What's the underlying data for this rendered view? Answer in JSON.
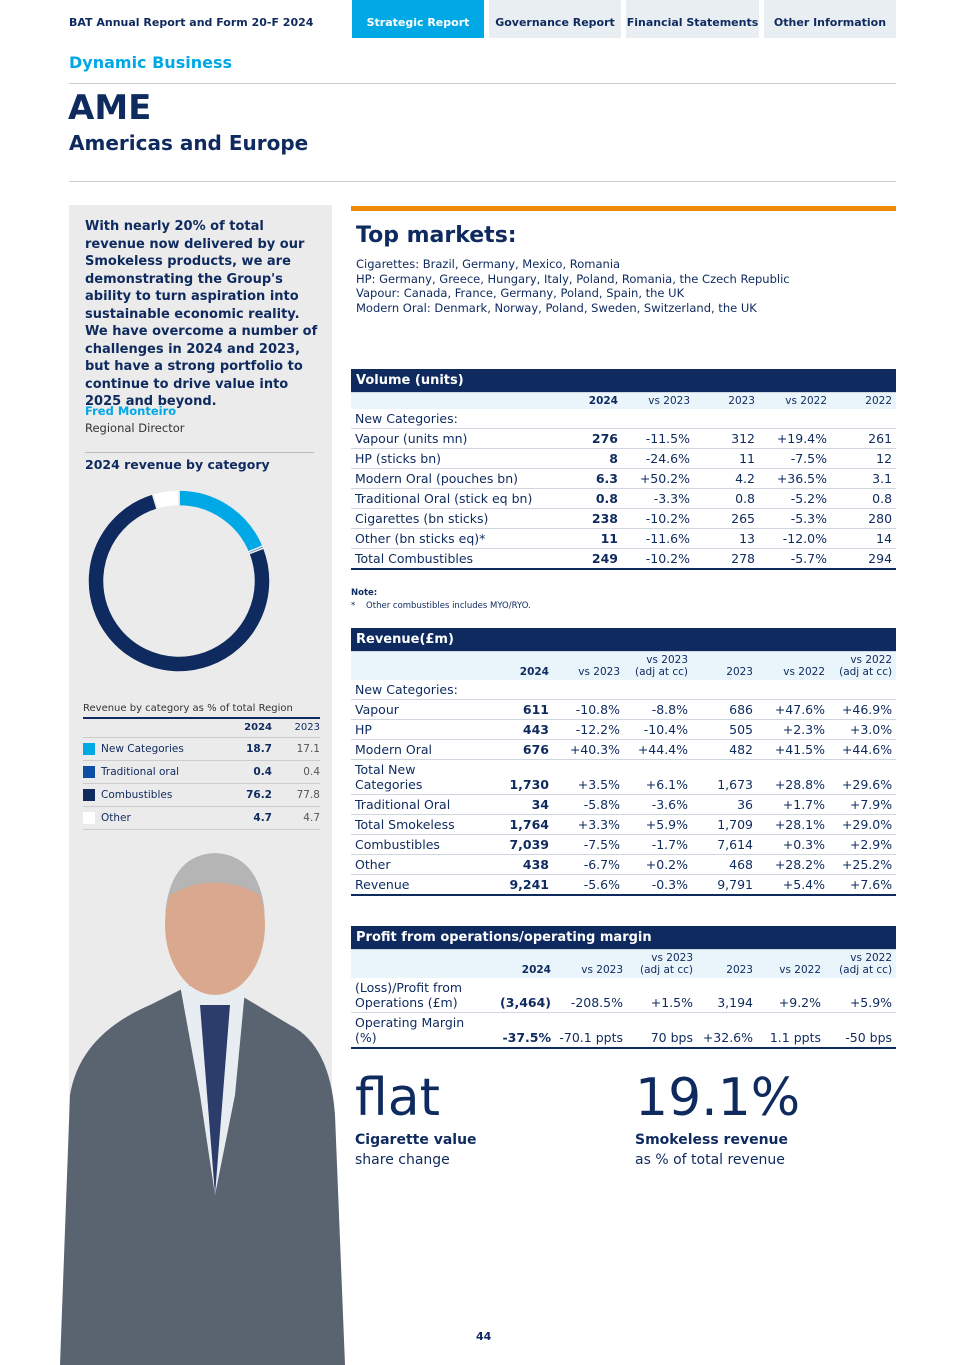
{
  "header": {
    "report": "BAT Annual Report and Form 20-F 2024",
    "tabs": [
      "Strategic Report",
      "Governance Report",
      "Financial Statements",
      "Other Information"
    ]
  },
  "section": "Dynamic Business",
  "title": "AME",
  "subtitle": "Americas and Europe",
  "quote": "With nearly 20% of total revenue now delivered by our Smokeless products, we are demonstrating the Group's ability to turn aspiration into sustainable economic reality. We have overcome a number of challenges in 2024 and 2023, but have a strong portfolio to continue to drive value into 2025 and beyond.",
  "person": {
    "name": "Fred Monteiro",
    "role": "Regional Director"
  },
  "revenue_by_category": {
    "type": "pie",
    "title": "2024 revenue by category",
    "caption": "Revenue by category as % of total Region",
    "columns": [
      "2024",
      "2023"
    ],
    "rows": [
      {
        "name": "New Categories",
        "color": "#00a9e6",
        "values": [
          18.7,
          17.1
        ]
      },
      {
        "name": "Traditional oral",
        "color": "#0a4fa3",
        "values": [
          0.4,
          0.4
        ]
      },
      {
        "name": "Combustibles",
        "color": "#0e2a5e",
        "values": [
          76.2,
          77.8
        ]
      },
      {
        "name": "Other",
        "color": "#ffffff",
        "values": [
          4.7,
          4.7
        ]
      }
    ]
  },
  "top_markets": {
    "title": "Top markets:",
    "lines": [
      "Cigarettes: Brazil, Germany, Mexico, Romania",
      "HP: Germany, Greece, Hungary, Italy, Poland, Romania, the Czech Republic",
      "Vapour: Canada, France, Germany, Poland, Spain, the UK",
      "Modern Oral: Denmark, Norway, Poland, Sweden, Switzerland, the UK"
    ]
  },
  "volume": {
    "title": "Volume (units)",
    "columns": [
      "",
      "2024",
      "vs 2023",
      "2023",
      "vs 2022",
      "2022"
    ],
    "rows": [
      [
        "New Categories:",
        "",
        "",
        "",
        "",
        ""
      ],
      [
        "Vapour (units mn)",
        "276",
        "-11.5%",
        "312",
        "+19.4%",
        "261"
      ],
      [
        "HP (sticks bn)",
        "8",
        "-24.6%",
        "11",
        "-7.5%",
        "12"
      ],
      [
        "Modern Oral (pouches bn)",
        "6.3",
        "+50.2%",
        "4.2",
        "+36.5%",
        "3.1"
      ],
      [
        "Traditional Oral (stick eq bn)",
        "0.8",
        "-3.3%",
        "0.8",
        "-5.2%",
        "0.8"
      ],
      [
        "Cigarettes (bn sticks)",
        "238",
        "-10.2%",
        "265",
        "-5.3%",
        "280"
      ],
      [
        "Other (bn sticks eq)*",
        "11",
        "-11.6%",
        "13",
        "-12.0%",
        "14"
      ],
      [
        "Total Combustibles",
        "249",
        "-10.2%",
        "278",
        "-5.7%",
        "294"
      ]
    ],
    "note_title": "Note:",
    "note": "*    Other combustibles includes MYO/RYO."
  },
  "revenue": {
    "title": "Revenue(£m)",
    "columns": [
      "",
      "2024",
      "vs 2023",
      "vs 2023\n(adj at cc)",
      "2023",
      "vs 2022",
      "vs 2022\n(adj at cc)"
    ],
    "rows": [
      [
        "New Categories:",
        "",
        "",
        "",
        "",
        "",
        ""
      ],
      [
        "Vapour",
        "611",
        "-10.8%",
        "-8.8%",
        "686",
        "+47.6%",
        "+46.9%"
      ],
      [
        "HP",
        "443",
        "-12.2%",
        "-10.4%",
        "505",
        "+2.3%",
        "+3.0%"
      ],
      [
        "Modern Oral",
        "676",
        "+40.3%",
        "+44.4%",
        "482",
        "+41.5%",
        "+44.6%"
      ],
      [
        "Total New\nCategories",
        "1,730",
        "+3.5%",
        "+6.1%",
        "1,673",
        "+28.8%",
        "+29.6%"
      ],
      [
        "Traditional Oral",
        "34",
        "-5.8%",
        "-3.6%",
        "36",
        "+1.7%",
        "+7.9%"
      ],
      [
        "Total Smokeless",
        "1,764",
        "+3.3%",
        "+5.9%",
        "1,709",
        "+28.1%",
        "+29.0%"
      ],
      [
        "Combustibles",
        "7,039",
        "-7.5%",
        "-1.7%",
        "7,614",
        "+0.3%",
        "+2.9%"
      ],
      [
        "Other",
        "438",
        "-6.7%",
        "+0.2%",
        "468",
        "+28.2%",
        "+25.2%"
      ],
      [
        "Revenue",
        "9,241",
        "-5.6%",
        "-0.3%",
        "9,791",
        "+5.4%",
        "+7.6%"
      ]
    ]
  },
  "profit": {
    "title": "Profit from operations/operating margin",
    "columns": [
      "",
      "2024",
      "vs 2023",
      "vs 2023\n(adj at cc)",
      "2023",
      "vs 2022",
      "vs 2022\n(adj at cc)"
    ],
    "rows": [
      [
        "(Loss)/Profit from\nOperations (£m)",
        "(3,464)",
        "-208.5%",
        "+1.5%",
        "3,194",
        "+9.2%",
        "+5.9%"
      ],
      [
        "Operating Margin (%)",
        "-37.5%",
        "-70.1 ppts",
        "70 bps",
        "+32.6%",
        "1.1 ppts",
        "-50 bps"
      ]
    ]
  },
  "stats": [
    {
      "value": "flat",
      "label": "Cigarette value",
      "sub": "share change"
    },
    {
      "value": "19.1%",
      "label": "Smokeless revenue",
      "sub": "as % of total revenue"
    }
  ],
  "page_number": "44"
}
